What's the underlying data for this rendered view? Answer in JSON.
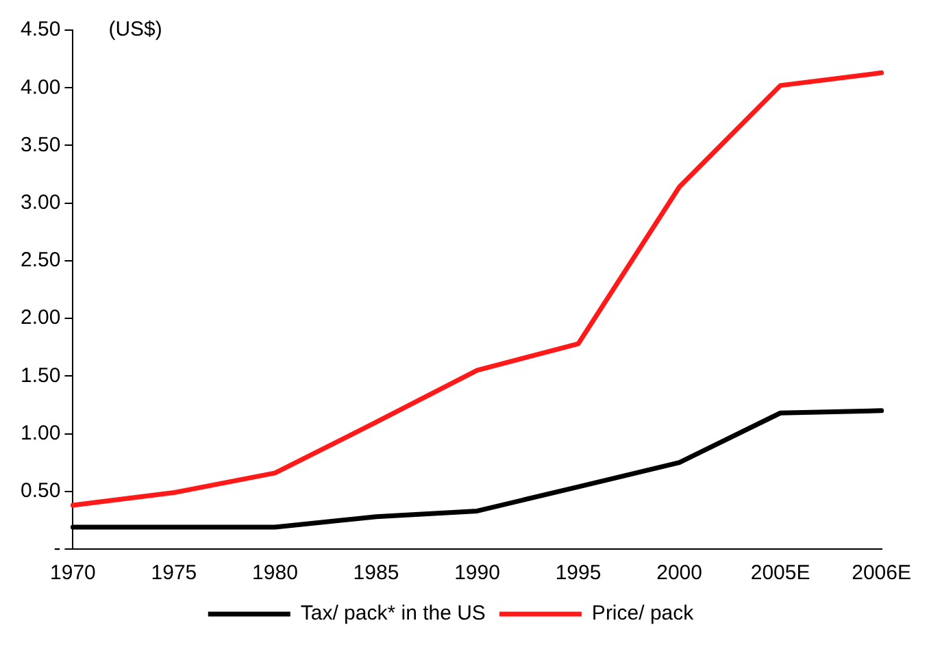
{
  "chart_data": {
    "type": "line",
    "ylabel": "(US$)",
    "categories": [
      "1970",
      "1975",
      "1980",
      "1985",
      "1990",
      "1995",
      "2000",
      "2005E",
      "2006E"
    ],
    "series": [
      {
        "name": "Tax/ pack* in the US",
        "color": "#000000",
        "values": [
          0.19,
          0.19,
          0.19,
          0.28,
          0.33,
          0.54,
          0.75,
          1.18,
          1.2
        ]
      },
      {
        "name": "Price/ pack",
        "color": "#ff1a1a",
        "values": [
          0.38,
          0.49,
          0.66,
          1.1,
          1.55,
          1.78,
          3.14,
          4.02,
          4.13
        ]
      }
    ],
    "ylim": [
      0,
      4.5
    ],
    "yticks": [
      {
        "value": 0,
        "label": "-"
      },
      {
        "value": 0.5,
        "label": "0.50"
      },
      {
        "value": 1,
        "label": "1.00"
      },
      {
        "value": 1.5,
        "label": "1.50"
      },
      {
        "value": 2,
        "label": "2.00"
      },
      {
        "value": 2.5,
        "label": "2.50"
      },
      {
        "value": 3,
        "label": "3.00"
      },
      {
        "value": 3.5,
        "label": "3.50"
      },
      {
        "value": 4,
        "label": "4.00"
      },
      {
        "value": 4.5,
        "label": "4.50"
      }
    ],
    "grid": false,
    "legend": "bottom",
    "marker": "none",
    "line_style": "solid"
  }
}
